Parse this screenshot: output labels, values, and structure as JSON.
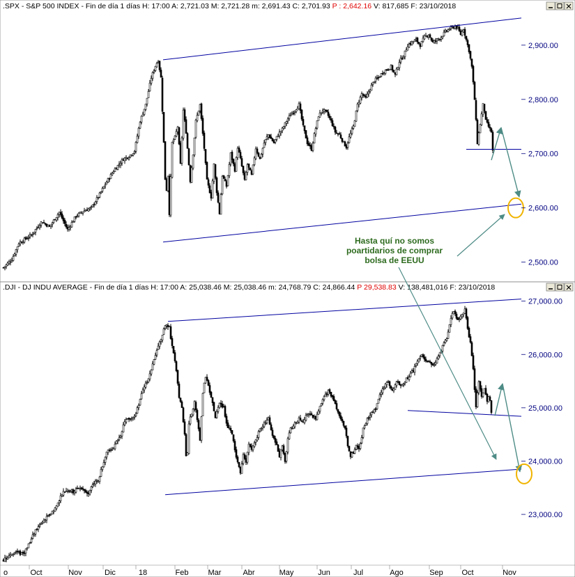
{
  "chart_data": [
    {
      "type": "candlestick",
      "symbol": ".SPX",
      "name": "S&P 500 INDEX",
      "period": "Fin de día 1 días",
      "header": {
        "H": "17:00",
        "A": "2,721.03",
        "M": "2,721.28",
        "m": "2,691.43",
        "C": "2,701.93",
        "P": "2,642.16",
        "V": "817,685",
        "F": "23/10/2018"
      },
      "yticks": [
        "2,900.00",
        "2,800.00",
        "2,700.00",
        "2,600.00",
        "2,500.00"
      ],
      "ytick_values": [
        2900,
        2800,
        2700,
        2600,
        2500
      ],
      "ylim": [
        2470,
        2955
      ],
      "anchors": [
        [
          0,
          2490
        ],
        [
          12,
          2505
        ],
        [
          22,
          2535
        ],
        [
          40,
          2550
        ],
        [
          55,
          2575
        ],
        [
          66,
          2565
        ],
        [
          80,
          2592
        ],
        [
          92,
          2560
        ],
        [
          104,
          2585
        ],
        [
          116,
          2595
        ],
        [
          126,
          2600
        ],
        [
          138,
          2625
        ],
        [
          148,
          2648
        ],
        [
          160,
          2672
        ],
        [
          172,
          2690
        ],
        [
          180,
          2695
        ],
        [
          188,
          2705
        ],
        [
          196,
          2760
        ],
        [
          204,
          2790
        ],
        [
          212,
          2840
        ],
        [
          218,
          2862
        ],
        [
          222,
          2872
        ],
        [
          226,
          2840
        ],
        [
          230,
          2720
        ],
        [
          233,
          2620
        ],
        [
          236,
          2660
        ],
        [
          238,
          2590
        ],
        [
          242,
          2720
        ],
        [
          246,
          2730
        ],
        [
          250,
          2750
        ],
        [
          254,
          2680
        ],
        [
          258,
          2780
        ],
        [
          262,
          2740
        ],
        [
          268,
          2650
        ],
        [
          272,
          2700
        ],
        [
          276,
          2760
        ],
        [
          282,
          2790
        ],
        [
          288,
          2710
        ],
        [
          292,
          2650
        ],
        [
          298,
          2620
        ],
        [
          302,
          2680
        ],
        [
          306,
          2630
        ],
        [
          310,
          2590
        ],
        [
          314,
          2660
        ],
        [
          320,
          2640
        ],
        [
          326,
          2700
        ],
        [
          332,
          2670
        ],
        [
          336,
          2712
        ],
        [
          340,
          2690
        ],
        [
          346,
          2650
        ],
        [
          350,
          2680
        ],
        [
          356,
          2660
        ],
        [
          362,
          2710
        ],
        [
          368,
          2690
        ],
        [
          374,
          2720
        ],
        [
          380,
          2735
        ],
        [
          388,
          2720
        ],
        [
          394,
          2735
        ],
        [
          400,
          2745
        ],
        [
          406,
          2760
        ],
        [
          412,
          2772
        ],
        [
          418,
          2780
        ],
        [
          424,
          2790
        ],
        [
          430,
          2750
        ],
        [
          436,
          2720
        ],
        [
          442,
          2708
        ],
        [
          446,
          2735
        ],
        [
          452,
          2770
        ],
        [
          458,
          2780
        ],
        [
          464,
          2775
        ],
        [
          470,
          2760
        ],
        [
          476,
          2740
        ],
        [
          482,
          2735
        ],
        [
          488,
          2720
        ],
        [
          492,
          2712
        ],
        [
          496,
          2730
        ],
        [
          502,
          2750
        ],
        [
          508,
          2790
        ],
        [
          514,
          2810
        ],
        [
          520,
          2802
        ],
        [
          526,
          2820
        ],
        [
          532,
          2835
        ],
        [
          538,
          2840
        ],
        [
          544,
          2850
        ],
        [
          550,
          2855
        ],
        [
          556,
          2860
        ],
        [
          562,
          2845
        ],
        [
          568,
          2870
        ],
        [
          574,
          2880
        ],
        [
          580,
          2900
        ],
        [
          586,
          2905
        ],
        [
          592,
          2910
        ],
        [
          598,
          2900
        ],
        [
          604,
          2915
        ],
        [
          610,
          2920
        ],
        [
          616,
          2905
        ],
        [
          622,
          2910
        ],
        [
          628,
          2915
        ],
        [
          634,
          2925
        ],
        [
          640,
          2930
        ],
        [
          644,
          2932
        ],
        [
          648,
          2935
        ],
        [
          652,
          2930
        ],
        [
          656,
          2920
        ],
        [
          660,
          2930
        ],
        [
          664,
          2910
        ],
        [
          668,
          2890
        ],
        [
          672,
          2860
        ],
        [
          676,
          2800
        ],
        [
          680,
          2720
        ],
        [
          684,
          2755
        ],
        [
          688,
          2790
        ],
        [
          690,
          2780
        ],
        [
          692,
          2760
        ],
        [
          696,
          2750
        ],
        [
          700,
          2740
        ],
        [
          702,
          2705
        ]
      ],
      "trendlines": [
        {
          "x1": 229,
          "y1": 2873,
          "x2": 743,
          "y2": 2950
        },
        {
          "x1": 229,
          "y1": 2537,
          "x2": 743,
          "y2": 2607
        },
        {
          "x1": 664,
          "y1": 2708,
          "x2": 743,
          "y2": 2708
        }
      ],
      "arrows": [
        {
          "from": [
            700,
            2688
          ],
          "to": [
            714,
            2748
          ]
        },
        {
          "from": [
            714,
            2748
          ],
          "to": [
            740,
            2620
          ]
        }
      ],
      "highlight": {
        "x": 735,
        "y": 2600
      }
    },
    {
      "type": "candlestick",
      "symbol": ".DJI",
      "name": "DJ INDU AVERAGE",
      "period": "Fin de día 1 días",
      "header": {
        "H": "17:00",
        "A": "25,038.46",
        "M": "25,038.46",
        "m": "24,768.79",
        "C": "24,866.44",
        "P": "29,538.83",
        "V": "138,481,016",
        "F": "23/10/2018"
      },
      "yticks": [
        "27,000.00",
        "26,000.00",
        "25,000.00",
        "24,000.00",
        "23,000.00"
      ],
      "ytick_values": [
        27000,
        26000,
        25000,
        24000,
        23000
      ],
      "ylim": [
        22100,
        27100
      ],
      "anchors": [
        [
          0,
          22150
        ],
        [
          10,
          22250
        ],
        [
          18,
          22300
        ],
        [
          24,
          22260
        ],
        [
          30,
          22300
        ],
        [
          38,
          22480
        ],
        [
          46,
          22700
        ],
        [
          56,
          22850
        ],
        [
          66,
          22990
        ],
        [
          76,
          23150
        ],
        [
          84,
          23400
        ],
        [
          92,
          23460
        ],
        [
          100,
          23420
        ],
        [
          108,
          23500
        ],
        [
          116,
          23450
        ],
        [
          122,
          23380
        ],
        [
          128,
          23560
        ],
        [
          136,
          23650
        ],
        [
          142,
          23900
        ],
        [
          148,
          24200
        ],
        [
          154,
          24200
        ],
        [
          160,
          24300
        ],
        [
          168,
          24500
        ],
        [
          174,
          24750
        ],
        [
          182,
          24800
        ],
        [
          190,
          24880
        ],
        [
          198,
          25250
        ],
        [
          206,
          25500
        ],
        [
          214,
          25800
        ],
        [
          220,
          26100
        ],
        [
          226,
          26300
        ],
        [
          230,
          26450
        ],
        [
          234,
          26580
        ],
        [
          238,
          26500
        ],
        [
          240,
          26300
        ],
        [
          244,
          26000
        ],
        [
          248,
          25700
        ],
        [
          252,
          25200
        ],
        [
          256,
          25000
        ],
        [
          260,
          24500
        ],
        [
          263,
          23900
        ],
        [
          266,
          24700
        ],
        [
          270,
          24900
        ],
        [
          274,
          25100
        ],
        [
          278,
          24800
        ],
        [
          282,
          24400
        ],
        [
          286,
          25300
        ],
        [
          290,
          25600
        ],
        [
          294,
          25400
        ],
        [
          298,
          25200
        ],
        [
          304,
          24800
        ],
        [
          310,
          25100
        ],
        [
          316,
          25000
        ],
        [
          320,
          24700
        ],
        [
          324,
          24600
        ],
        [
          328,
          24500
        ],
        [
          332,
          24200
        ],
        [
          336,
          24000
        ],
        [
          340,
          23800
        ],
        [
          344,
          24100
        ],
        [
          348,
          24000
        ],
        [
          352,
          24300
        ],
        [
          356,
          24200
        ],
        [
          362,
          24400
        ],
        [
          368,
          24600
        ],
        [
          374,
          24700
        ],
        [
          380,
          24800
        ],
        [
          386,
          24500
        ],
        [
          392,
          24300
        ],
        [
          396,
          24100
        ],
        [
          400,
          24300
        ],
        [
          404,
          24000
        ],
        [
          408,
          24400
        ],
        [
          412,
          24600
        ],
        [
          418,
          24700
        ],
        [
          424,
          24800
        ],
        [
          430,
          24750
        ],
        [
          436,
          24900
        ],
        [
          442,
          24850
        ],
        [
          448,
          24800
        ],
        [
          454,
          25000
        ],
        [
          460,
          25200
        ],
        [
          466,
          25300
        ],
        [
          472,
          25200
        ],
        [
          478,
          25000
        ],
        [
          484,
          24800
        ],
        [
          490,
          24600
        ],
        [
          494,
          24300
        ],
        [
          498,
          24100
        ],
        [
          502,
          24150
        ],
        [
          506,
          24300
        ],
        [
          510,
          24200
        ],
        [
          516,
          24600
        ],
        [
          522,
          24800
        ],
        [
          528,
          24900
        ],
        [
          534,
          25000
        ],
        [
          540,
          25250
        ],
        [
          546,
          25400
        ],
        [
          552,
          25500
        ],
        [
          558,
          25300
        ],
        [
          564,
          25500
        ],
        [
          570,
          25400
        ],
        [
          576,
          25500
        ],
        [
          582,
          25600
        ],
        [
          588,
          25700
        ],
        [
          594,
          25900
        ],
        [
          600,
          26000
        ],
        [
          606,
          25900
        ],
        [
          612,
          25850
        ],
        [
          618,
          25800
        ],
        [
          624,
          25950
        ],
        [
          630,
          26150
        ],
        [
          636,
          26300
        ],
        [
          642,
          26700
        ],
        [
          646,
          26800
        ],
        [
          650,
          26700
        ],
        [
          654,
          26650
        ],
        [
          658,
          26750
        ],
        [
          662,
          26850
        ],
        [
          666,
          26500
        ],
        [
          670,
          26200
        ],
        [
          674,
          25700
        ],
        [
          678,
          25000
        ],
        [
          682,
          25500
        ],
        [
          686,
          25200
        ],
        [
          690,
          25350
        ],
        [
          694,
          25100
        ],
        [
          697,
          25300
        ],
        [
          700,
          24900
        ]
      ],
      "trendlines": [
        {
          "x1": 236,
          "y1": 26620,
          "x2": 743,
          "y2": 27040
        },
        {
          "x1": 232,
          "y1": 23370,
          "x2": 743,
          "y2": 23850
        },
        {
          "x1": 580,
          "y1": 24950,
          "x2": 743,
          "y2": 24840
        }
      ],
      "arrows": [
        {
          "from": [
            705,
            24850
          ],
          "to": [
            716,
            25450
          ]
        },
        {
          "from": [
            716,
            25450
          ],
          "to": [
            741,
            23800
          ]
        }
      ],
      "highlight": {
        "x": 747,
        "y": 23760
      }
    }
  ],
  "xaxis": {
    "labels": [
      "o",
      "Oct",
      "Nov",
      "Dic",
      "18",
      "Feb",
      "Mar",
      "Abr",
      "May",
      "Jun",
      "Jul",
      "Ago",
      "Sep",
      "Oct",
      "Nov"
    ],
    "positions": [
      8,
      52,
      108,
      158,
      205,
      261,
      308,
      357,
      411,
      465,
      514,
      569,
      626,
      671,
      731
    ]
  },
  "annotation": {
    "lines": [
      "Hasta quí no somos",
      "poartidarios de comprar",
      "bolsa de EEUU"
    ]
  },
  "colors": {
    "trendline": "#0000a0",
    "arrow": "#4e8c86",
    "highlight": "#f0b400",
    "annotation": "#2e6b1f",
    "axis_text": "#000080",
    "price_red": "#e00000"
  },
  "window_buttons": [
    "minimize-icon",
    "maximize-icon",
    "close-icon"
  ]
}
